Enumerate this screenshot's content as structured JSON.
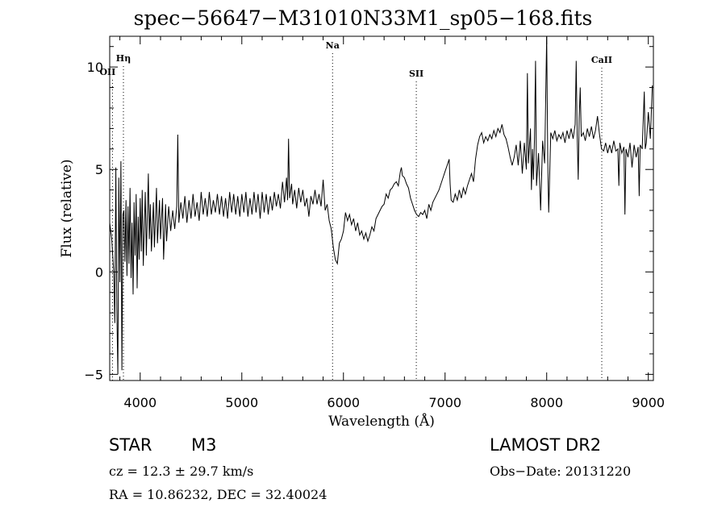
{
  "chart_data": {
    "type": "line",
    "title": "spec−56647−M31010N33M1_sp05−168.fits",
    "xlabel": "Wavelength (Å)",
    "ylabel": "Flux (relative)",
    "xlim": [
      3700,
      9050
    ],
    "ylim": [
      -5.3,
      11.5
    ],
    "x_ticks": [
      4000,
      5000,
      6000,
      7000,
      8000,
      9000
    ],
    "y_ticks": [
      -5,
      0,
      5,
      10
    ],
    "spectral_lines": [
      {
        "label": "OII",
        "wavelength": 3727
      },
      {
        "label": "Hη",
        "wavelength": 3835
      },
      {
        "label": "Na",
        "wavelength": 5893
      },
      {
        "label": "SII",
        "wavelength": 6717
      },
      {
        "label": "CaII",
        "wavelength": 8542
      }
    ],
    "series": [
      {
        "points": [
          [
            3700,
            2.4
          ],
          [
            3720,
            1.6
          ],
          [
            3740,
            0.0
          ],
          [
            3750,
            -2.5
          ],
          [
            3760,
            5.1
          ],
          [
            3770,
            -1.8
          ],
          [
            3780,
            -5.0
          ],
          [
            3790,
            4.6
          ],
          [
            3800,
            -0.5
          ],
          [
            3810,
            5.4
          ],
          [
            3820,
            -4.8
          ],
          [
            3830,
            2.8
          ],
          [
            3840,
            3.0
          ],
          [
            3850,
            0.5
          ],
          [
            3860,
            3.5
          ],
          [
            3870,
            -0.2
          ],
          [
            3880,
            3.2
          ],
          [
            3890,
            0.4
          ],
          [
            3900,
            4.1
          ],
          [
            3910,
            -0.3
          ],
          [
            3920,
            2.4
          ],
          [
            3930,
            -1.1
          ],
          [
            3940,
            3.4
          ],
          [
            3950,
            0.8
          ],
          [
            3960,
            3.8
          ],
          [
            3970,
            -0.8
          ],
          [
            3980,
            2.7
          ],
          [
            3990,
            0.6
          ],
          [
            4000,
            3.6
          ],
          [
            4010,
            1.0
          ],
          [
            4020,
            4.0
          ],
          [
            4030,
            0.3
          ],
          [
            4050,
            3.9
          ],
          [
            4060,
            0.8
          ],
          [
            4080,
            4.8
          ],
          [
            4090,
            1.6
          ],
          [
            4100,
            3.3
          ],
          [
            4110,
            1.0
          ],
          [
            4130,
            3.4
          ],
          [
            4140,
            1.2
          ],
          [
            4160,
            4.1
          ],
          [
            4170,
            1.4
          ],
          [
            4190,
            3.5
          ],
          [
            4200,
            1.6
          ],
          [
            4220,
            3.6
          ],
          [
            4230,
            0.6
          ],
          [
            4250,
            3.3
          ],
          [
            4260,
            1.5
          ],
          [
            4280,
            3.2
          ],
          [
            4300,
            2.0
          ],
          [
            4320,
            3.0
          ],
          [
            4340,
            2.1
          ],
          [
            4360,
            3.2
          ],
          [
            4370,
            6.7
          ],
          [
            4380,
            2.4
          ],
          [
            4400,
            3.4
          ],
          [
            4420,
            2.6
          ],
          [
            4440,
            3.7
          ],
          [
            4460,
            2.4
          ],
          [
            4480,
            3.5
          ],
          [
            4500,
            2.6
          ],
          [
            4520,
            3.8
          ],
          [
            4540,
            2.7
          ],
          [
            4560,
            3.4
          ],
          [
            4580,
            2.5
          ],
          [
            4600,
            3.9
          ],
          [
            4620,
            2.8
          ],
          [
            4640,
            3.6
          ],
          [
            4660,
            2.7
          ],
          [
            4680,
            3.9
          ],
          [
            4700,
            2.8
          ],
          [
            4720,
            3.5
          ],
          [
            4740,
            2.9
          ],
          [
            4760,
            3.8
          ],
          [
            4780,
            2.8
          ],
          [
            4800,
            3.7
          ],
          [
            4820,
            2.7
          ],
          [
            4840,
            3.6
          ],
          [
            4860,
            2.6
          ],
          [
            4880,
            3.9
          ],
          [
            4900,
            2.9
          ],
          [
            4920,
            3.8
          ],
          [
            4940,
            2.8
          ],
          [
            4960,
            3.7
          ],
          [
            4980,
            2.7
          ],
          [
            5000,
            3.8
          ],
          [
            5020,
            2.9
          ],
          [
            5040,
            3.9
          ],
          [
            5060,
            2.7
          ],
          [
            5080,
            3.6
          ],
          [
            5100,
            2.8
          ],
          [
            5120,
            3.9
          ],
          [
            5140,
            2.9
          ],
          [
            5160,
            3.8
          ],
          [
            5180,
            2.6
          ],
          [
            5200,
            3.9
          ],
          [
            5220,
            2.9
          ],
          [
            5240,
            3.8
          ],
          [
            5260,
            2.8
          ],
          [
            5280,
            3.7
          ],
          [
            5300,
            3.0
          ],
          [
            5320,
            3.9
          ],
          [
            5340,
            3.2
          ],
          [
            5360,
            3.8
          ],
          [
            5380,
            3.1
          ],
          [
            5400,
            4.4
          ],
          [
            5420,
            3.4
          ],
          [
            5440,
            4.6
          ],
          [
            5450,
            3.5
          ],
          [
            5460,
            6.5
          ],
          [
            5470,
            3.6
          ],
          [
            5490,
            4.3
          ],
          [
            5500,
            3.3
          ],
          [
            5520,
            4.0
          ],
          [
            5540,
            3.1
          ],
          [
            5560,
            4.1
          ],
          [
            5580,
            3.4
          ],
          [
            5600,
            4.0
          ],
          [
            5620,
            3.2
          ],
          [
            5640,
            3.6
          ],
          [
            5660,
            2.7
          ],
          [
            5680,
            3.7
          ],
          [
            5700,
            3.3
          ],
          [
            5720,
            4.0
          ],
          [
            5740,
            3.3
          ],
          [
            5760,
            3.8
          ],
          [
            5780,
            3.2
          ],
          [
            5800,
            4.5
          ],
          [
            5820,
            3.0
          ],
          [
            5840,
            3.3
          ],
          [
            5860,
            2.5
          ],
          [
            5880,
            2.1
          ],
          [
            5900,
            1.2
          ],
          [
            5920,
            0.6
          ],
          [
            5940,
            0.4
          ],
          [
            5960,
            1.4
          ],
          [
            5980,
            1.6
          ],
          [
            6000,
            2.0
          ],
          [
            6020,
            2.9
          ],
          [
            6040,
            2.5
          ],
          [
            6060,
            2.8
          ],
          [
            6080,
            2.3
          ],
          [
            6100,
            2.6
          ],
          [
            6120,
            2.0
          ],
          [
            6140,
            2.4
          ],
          [
            6160,
            1.8
          ],
          [
            6180,
            2.0
          ],
          [
            6200,
            1.6
          ],
          [
            6220,
            1.9
          ],
          [
            6240,
            1.5
          ],
          [
            6260,
            1.8
          ],
          [
            6280,
            2.2
          ],
          [
            6300,
            2.0
          ],
          [
            6320,
            2.6
          ],
          [
            6340,
            2.8
          ],
          [
            6360,
            3.0
          ],
          [
            6380,
            3.2
          ],
          [
            6400,
            3.3
          ],
          [
            6420,
            3.8
          ],
          [
            6440,
            3.6
          ],
          [
            6460,
            4.0
          ],
          [
            6480,
            4.1
          ],
          [
            6500,
            4.3
          ],
          [
            6520,
            4.4
          ],
          [
            6540,
            4.2
          ],
          [
            6560,
            4.9
          ],
          [
            6570,
            5.1
          ],
          [
            6580,
            4.7
          ],
          [
            6600,
            4.6
          ],
          [
            6620,
            4.3
          ],
          [
            6640,
            4.1
          ],
          [
            6660,
            3.6
          ],
          [
            6680,
            3.3
          ],
          [
            6700,
            3.0
          ],
          [
            6720,
            2.8
          ],
          [
            6740,
            2.7
          ],
          [
            6760,
            2.9
          ],
          [
            6780,
            2.8
          ],
          [
            6800,
            3.0
          ],
          [
            6820,
            2.6
          ],
          [
            6840,
            3.3
          ],
          [
            6860,
            3.0
          ],
          [
            6880,
            3.4
          ],
          [
            6900,
            3.6
          ],
          [
            6920,
            3.8
          ],
          [
            6940,
            4.0
          ],
          [
            6960,
            4.3
          ],
          [
            6980,
            4.6
          ],
          [
            7000,
            4.9
          ],
          [
            7020,
            5.2
          ],
          [
            7040,
            5.5
          ],
          [
            7050,
            4.3
          ],
          [
            7060,
            3.5
          ],
          [
            7080,
            3.4
          ],
          [
            7100,
            3.8
          ],
          [
            7120,
            3.5
          ],
          [
            7140,
            4.0
          ],
          [
            7160,
            3.6
          ],
          [
            7180,
            4.1
          ],
          [
            7200,
            3.8
          ],
          [
            7220,
            4.2
          ],
          [
            7240,
            4.5
          ],
          [
            7260,
            4.8
          ],
          [
            7280,
            4.4
          ],
          [
            7300,
            5.5
          ],
          [
            7320,
            6.2
          ],
          [
            7340,
            6.6
          ],
          [
            7360,
            6.8
          ],
          [
            7380,
            6.3
          ],
          [
            7400,
            6.6
          ],
          [
            7420,
            6.4
          ],
          [
            7440,
            6.7
          ],
          [
            7460,
            6.5
          ],
          [
            7480,
            6.9
          ],
          [
            7500,
            6.6
          ],
          [
            7520,
            7.0
          ],
          [
            7540,
            6.8
          ],
          [
            7560,
            7.2
          ],
          [
            7580,
            6.7
          ],
          [
            7600,
            6.5
          ],
          [
            7620,
            6.1
          ],
          [
            7640,
            5.6
          ],
          [
            7660,
            5.2
          ],
          [
            7680,
            5.6
          ],
          [
            7700,
            6.2
          ],
          [
            7720,
            5.2
          ],
          [
            7740,
            6.4
          ],
          [
            7760,
            4.8
          ],
          [
            7780,
            6.3
          ],
          [
            7800,
            5.0
          ],
          [
            7810,
            9.7
          ],
          [
            7820,
            5.3
          ],
          [
            7840,
            7.0
          ],
          [
            7850,
            4.0
          ],
          [
            7860,
            6.0
          ],
          [
            7870,
            4.5
          ],
          [
            7880,
            6.5
          ],
          [
            7890,
            10.3
          ],
          [
            7900,
            4.2
          ],
          [
            7920,
            5.8
          ],
          [
            7940,
            3.0
          ],
          [
            7960,
            6.4
          ],
          [
            7980,
            5.3
          ],
          [
            8000,
            11.5
          ],
          [
            8010,
            5.5
          ],
          [
            8020,
            2.9
          ],
          [
            8040,
            6.8
          ],
          [
            8060,
            6.5
          ],
          [
            8080,
            6.9
          ],
          [
            8100,
            6.4
          ],
          [
            8120,
            6.7
          ],
          [
            8140,
            6.5
          ],
          [
            8160,
            6.8
          ],
          [
            8180,
            6.3
          ],
          [
            8200,
            6.9
          ],
          [
            8220,
            6.5
          ],
          [
            8240,
            7.0
          ],
          [
            8260,
            6.5
          ],
          [
            8280,
            7.2
          ],
          [
            8290,
            10.3
          ],
          [
            8300,
            6.7
          ],
          [
            8310,
            4.5
          ],
          [
            8320,
            7.5
          ],
          [
            8330,
            9.0
          ],
          [
            8340,
            6.6
          ],
          [
            8360,
            6.8
          ],
          [
            8380,
            6.4
          ],
          [
            8400,
            7.0
          ],
          [
            8420,
            6.6
          ],
          [
            8440,
            7.1
          ],
          [
            8460,
            6.5
          ],
          [
            8480,
            6.9
          ],
          [
            8500,
            7.6
          ],
          [
            8520,
            6.7
          ],
          [
            8540,
            6.0
          ],
          [
            8560,
            5.9
          ],
          [
            8580,
            6.3
          ],
          [
            8600,
            5.8
          ],
          [
            8620,
            6.2
          ],
          [
            8640,
            5.8
          ],
          [
            8660,
            6.4
          ],
          [
            8680,
            5.9
          ],
          [
            8700,
            6.0
          ],
          [
            8710,
            4.2
          ],
          [
            8720,
            6.3
          ],
          [
            8740,
            5.8
          ],
          [
            8760,
            6.1
          ],
          [
            8770,
            2.8
          ],
          [
            8780,
            6.0
          ],
          [
            8800,
            5.6
          ],
          [
            8820,
            6.3
          ],
          [
            8840,
            5.1
          ],
          [
            8860,
            6.2
          ],
          [
            8880,
            5.6
          ],
          [
            8900,
            6.1
          ],
          [
            8910,
            3.7
          ],
          [
            8920,
            6.2
          ],
          [
            8940,
            6.0
          ],
          [
            8960,
            8.8
          ],
          [
            8970,
            6.0
          ],
          [
            8980,
            6.3
          ],
          [
            9000,
            7.8
          ],
          [
            9020,
            6.5
          ],
          [
            9040,
            9.1
          ]
        ]
      }
    ]
  },
  "footer": {
    "object_type": "STAR",
    "object_class": "M3",
    "survey": "LAMOST DR2",
    "cz": "cz = 12.3 ± 29.7 km/s",
    "obs_date": "Obs−Date: 20131220",
    "coords": "RA =  10.86232, DEC =  32.40024"
  }
}
